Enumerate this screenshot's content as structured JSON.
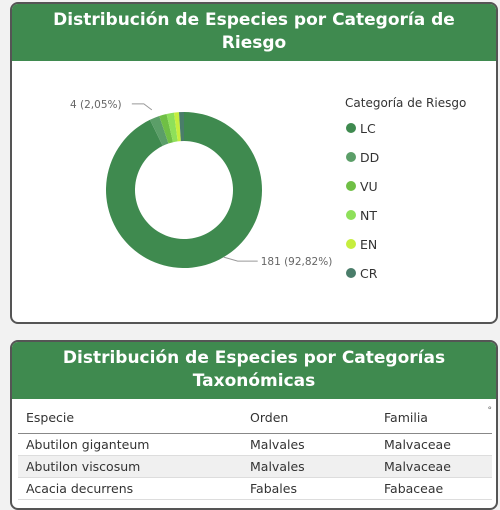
{
  "chart_data": {
    "type": "pie",
    "title": "Distribución de Especies por Categoría de Riesgo",
    "legend_title": "Categoría de Riesgo",
    "legend_placement": "right",
    "hole": true,
    "categories": [
      "LC",
      "DD",
      "VU",
      "NT",
      "EN",
      "CR"
    ],
    "values": [
      181,
      4,
      3,
      3,
      2,
      2
    ],
    "colors": [
      "#3f8a4f",
      "#5b9e68",
      "#6fbf45",
      "#8ee05a",
      "#c6ee3e",
      "#4a7d6a"
    ],
    "data_labels": [
      {
        "category": "LC",
        "text": "181 (92,82%)"
      },
      {
        "category": "DD",
        "text": "4 (2,05%)"
      }
    ]
  },
  "table": {
    "title": "Distribución de Especies por Categorías Taxonómicas",
    "columns": [
      "Especie",
      "Orden",
      "Familia"
    ],
    "rows": [
      [
        "Abutilon giganteum",
        "Malvales",
        "Malvaceae"
      ],
      [
        "Abutilon viscosum",
        "Malvales",
        "Malvaceae"
      ],
      [
        "Acacia decurrens",
        "Fabales",
        "Fabaceae"
      ]
    ]
  }
}
